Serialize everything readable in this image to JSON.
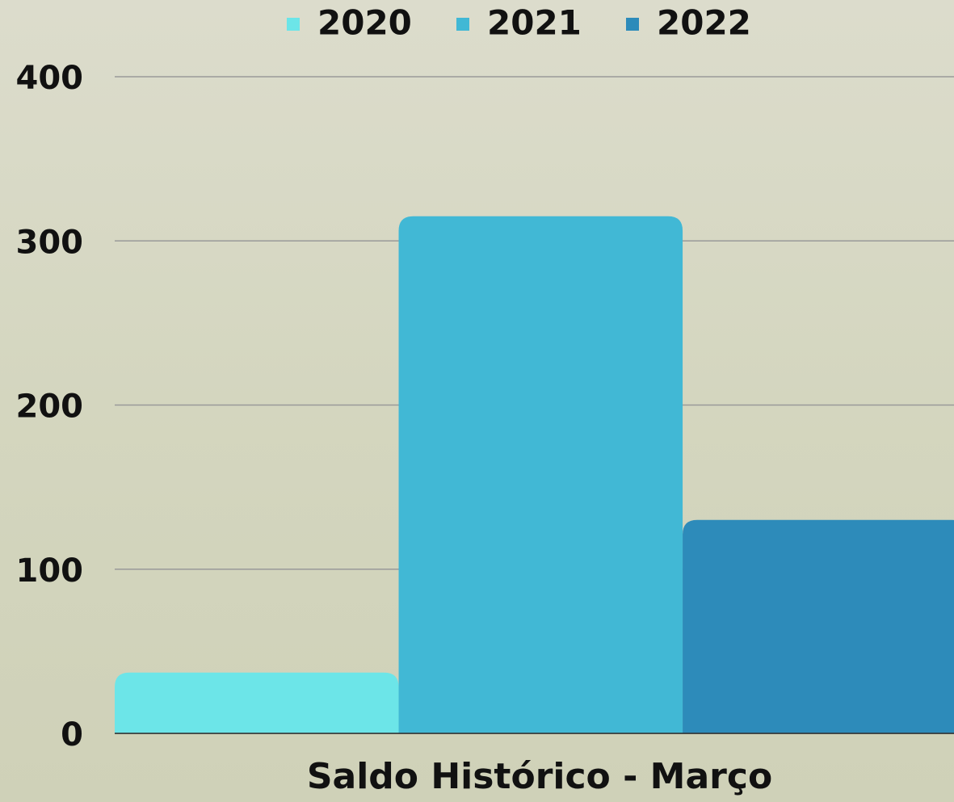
{
  "chart_data": {
    "type": "bar",
    "categories": [
      "Saldo Histórico - Março"
    ],
    "series": [
      {
        "name": "2020",
        "color": "#6ce5e8",
        "values": [
          37
        ]
      },
      {
        "name": "2021",
        "color": "#41b8d5",
        "values": [
          315
        ]
      },
      {
        "name": "2022",
        "color": "#2d8bba",
        "values": [
          130
        ]
      }
    ],
    "ylim": [
      0,
      400
    ],
    "yticks": [
      0,
      100,
      200,
      300,
      400
    ],
    "grid": true,
    "legend": "top"
  }
}
